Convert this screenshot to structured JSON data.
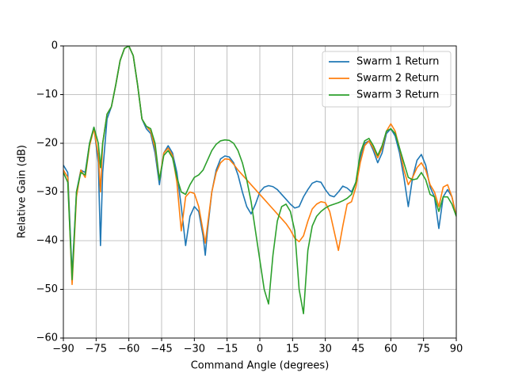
{
  "chart_data": {
    "type": "line",
    "xlabel": "Command Angle (degrees)",
    "ylabel": "Relative Gain (dB)",
    "x": [
      -90,
      -88,
      -86,
      -84,
      -82,
      -80,
      -78,
      -76,
      -74,
      -73,
      -72,
      -70,
      -68,
      -66,
      -64,
      -62,
      -60,
      -58,
      -56,
      -54,
      -52,
      -50,
      -48,
      -46,
      -44,
      -42,
      -40,
      -38,
      -36,
      -34,
      -32,
      -30,
      -28,
      -26,
      -25,
      -24,
      -22,
      -20,
      -18,
      -16,
      -14,
      -12,
      -10,
      -8,
      -6,
      -4,
      -2,
      0,
      2,
      4,
      6,
      8,
      10,
      12,
      14,
      16,
      18,
      20,
      22,
      24,
      26,
      28,
      30,
      32,
      34,
      36,
      38,
      40,
      42,
      44,
      46,
      48,
      50,
      52,
      54,
      56,
      58,
      60,
      62,
      64,
      66,
      68,
      70,
      72,
      74,
      76,
      78,
      80,
      82,
      84,
      86,
      88,
      90
    ],
    "series": [
      {
        "name": "Swarm 1 Return",
        "color": "#1f77b4",
        "values": [
          -24.5,
          -26,
          -47,
          -30,
          -25.5,
          -26,
          -20,
          -16.7,
          -24,
          -41,
          -26,
          -15,
          -12.5,
          -8,
          -3,
          -0.5,
          0,
          -2,
          -8,
          -15,
          -17,
          -18,
          -22,
          -28.5,
          -22,
          -20.5,
          -22,
          -26,
          -33,
          -41,
          -35,
          -33,
          -34,
          -39,
          -43,
          -38,
          -30,
          -25.5,
          -23.2,
          -22.6,
          -22.8,
          -24,
          -26.5,
          -30,
          -33,
          -34.5,
          -32.5,
          -30,
          -29,
          -28.7,
          -28.9,
          -29.5,
          -30.5,
          -31.5,
          -32.5,
          -33.3,
          -33,
          -31,
          -29.5,
          -28.2,
          -27.8,
          -28,
          -29.5,
          -30.7,
          -31,
          -30,
          -28.8,
          -29.2,
          -30,
          -28,
          -23,
          -20,
          -19.5,
          -21.5,
          -24,
          -22,
          -18,
          -17,
          -18.5,
          -22,
          -27,
          -33,
          -27,
          -23.5,
          -22.3,
          -24.5,
          -29,
          -31,
          -37.5,
          -31,
          -29.5,
          -31,
          -35
        ]
      },
      {
        "name": "Swarm 2 Return",
        "color": "#ff7f0e",
        "values": [
          -25.5,
          -27,
          -49,
          -31,
          -25.5,
          -27,
          -20.5,
          -17,
          -22.5,
          -30,
          -20,
          -14,
          -12.5,
          -8,
          -3,
          -0.5,
          0,
          -2,
          -8,
          -15,
          -16.5,
          -17.5,
          -21,
          -27.5,
          -22,
          -21,
          -22.5,
          -28,
          -38,
          -31,
          -30,
          -30.3,
          -33,
          -38,
          -40.5,
          -37,
          -30,
          -26,
          -24,
          -23.2,
          -23.3,
          -24.3,
          -25.5,
          -26.5,
          -27.5,
          -28.5,
          -29.5,
          -30.5,
          -31.5,
          -32.5,
          -33.5,
          -34.5,
          -35.5,
          -36.5,
          -37.8,
          -39.5,
          -40.2,
          -39,
          -36,
          -33.5,
          -32.5,
          -32,
          -32.2,
          -34,
          -38,
          -42,
          -37,
          -32.5,
          -32,
          -29,
          -24,
          -20.5,
          -19.5,
          -21,
          -23,
          -21,
          -17.5,
          -16,
          -17.5,
          -21,
          -25.5,
          -28.5,
          -27,
          -25,
          -24,
          -25.5,
          -28.5,
          -30,
          -33,
          -29,
          -28.5,
          -31,
          -35
        ]
      },
      {
        "name": "Swarm 3 Return",
        "color": "#2ca02c",
        "values": [
          -26,
          -28,
          -48,
          -30,
          -26,
          -26.5,
          -20,
          -16.7,
          -20,
          -25,
          -20,
          -14,
          -12.5,
          -8,
          -3,
          -0.5,
          0,
          -2,
          -8,
          -15,
          -16.5,
          -17,
          -20,
          -27.5,
          -22.5,
          -21.5,
          -23,
          -27,
          -30,
          -30.5,
          -28.5,
          -27,
          -26.5,
          -25.5,
          -24.5,
          -23.5,
          -21.5,
          -20.2,
          -19.5,
          -19.3,
          -19.4,
          -20,
          -21.5,
          -24,
          -27.5,
          -32,
          -38,
          -44,
          -50,
          -53,
          -43,
          -36,
          -33,
          -32.5,
          -34,
          -38,
          -50,
          -55,
          -42,
          -37,
          -35,
          -34,
          -33.3,
          -32.8,
          -32.5,
          -32.2,
          -31.8,
          -31.3,
          -30.5,
          -28,
          -22,
          -19.5,
          -19,
          -20.5,
          -22.5,
          -20.5,
          -17.5,
          -17,
          -18,
          -21,
          -24,
          -27,
          -27.5,
          -27.3,
          -26,
          -27.5,
          -30.5,
          -31,
          -34,
          -31,
          -31,
          -32.5,
          -35
        ]
      }
    ],
    "xlim": [
      -90,
      90
    ],
    "xticks": [
      {
        "value": -90,
        "label": "−90"
      },
      {
        "value": -75,
        "label": "−75"
      },
      {
        "value": -60,
        "label": "−60"
      },
      {
        "value": -45,
        "label": "−45"
      },
      {
        "value": -30,
        "label": "−30"
      },
      {
        "value": -15,
        "label": "−15"
      },
      0,
      15,
      30,
      45,
      60,
      75,
      90
    ],
    "ylim": [
      -60,
      0
    ],
    "yticks": [
      {
        "value": -60,
        "label": "−60"
      },
      {
        "value": -50,
        "label": "−50"
      },
      {
        "value": -40,
        "label": "−40"
      },
      {
        "value": -30,
        "label": "−30"
      },
      {
        "value": -20,
        "label": "−20"
      },
      {
        "value": -10,
        "label": "−10"
      },
      0
    ],
    "grid": true,
    "legend": "upper right"
  }
}
